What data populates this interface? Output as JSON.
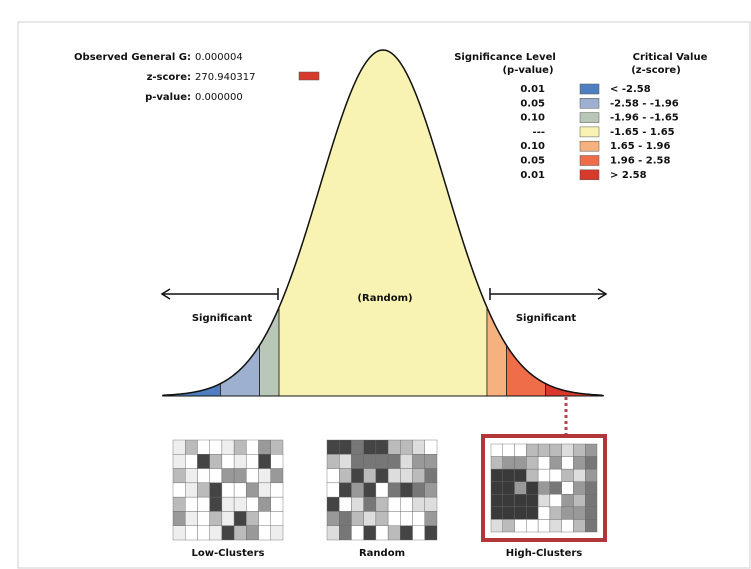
{
  "summary": {
    "rows": [
      {
        "label": "Observed General G:",
        "value": "0.000004"
      },
      {
        "label": "z-score:",
        "value": "270.940317"
      },
      {
        "label": "p-value:",
        "value": "0.000000"
      }
    ]
  },
  "legend": {
    "p_header": [
      "Significance Level",
      "(p-value)"
    ],
    "z_header": [
      "Critical Value",
      "(z-score)"
    ],
    "rows": [
      {
        "p": "0.01",
        "z": "< -2.58"
      },
      {
        "p": "0.05",
        "z": "-2.58 - -1.96"
      },
      {
        "p": "0.10",
        "z": "-1.96 - -1.65"
      },
      {
        "p": "---",
        "z": "-1.65 - 1.65"
      },
      {
        "p": "0.10",
        "z": "1.65 - 1.96"
      },
      {
        "p": "0.05",
        "z": "1.96 - 2.58"
      },
      {
        "p": "0.01",
        "z": "> 2.58"
      }
    ]
  },
  "curve": {
    "center_label": "(Random)",
    "left_label": "Significant",
    "right_label": "Significant"
  },
  "maps": {
    "labels": [
      "Low-Clusters",
      "Random",
      "High-Clusters"
    ]
  }
}
